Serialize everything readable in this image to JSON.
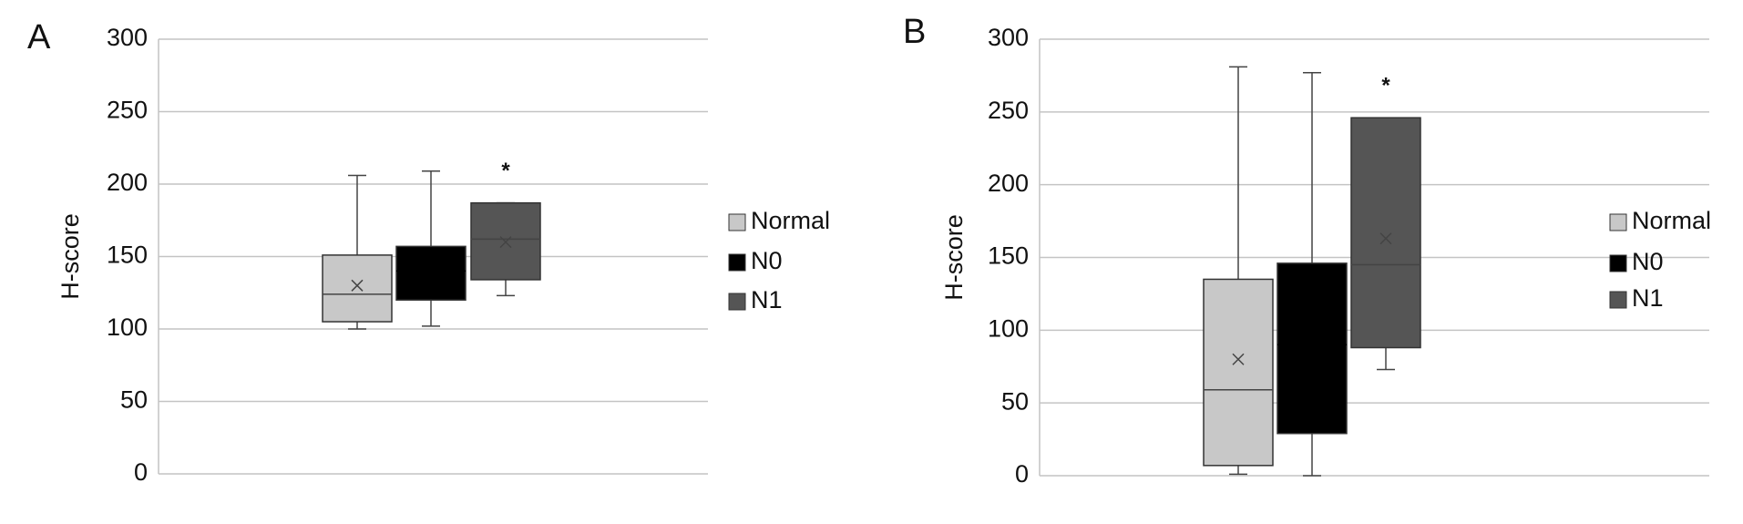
{
  "chart_data": [
    {
      "type": "box",
      "panel_label": "A",
      "ylabel": "H-score",
      "ylim": [
        0,
        300
      ],
      "yticks": [
        0,
        50,
        100,
        150,
        200,
        250,
        300
      ],
      "grid": true,
      "series": [
        {
          "name": "Normal",
          "color": "#c8c8c8",
          "min": 100,
          "q1": 105,
          "median": 124,
          "q3": 151,
          "max": 206,
          "mean": 130
        },
        {
          "name": "N0",
          "color": "#000000",
          "min": 102,
          "q1": 120,
          "median": 140,
          "q3": 157,
          "max": 209,
          "mean": 140
        },
        {
          "name": "N1",
          "color": "#555555",
          "min": 123,
          "q1": 134,
          "median": 162,
          "q3": 187,
          "max": 187,
          "mean": 160
        }
      ],
      "annotations": [
        {
          "text": "*",
          "category": "N1"
        }
      ]
    },
    {
      "type": "box",
      "panel_label": "B",
      "ylabel": "H-score",
      "ylim": [
        0,
        300
      ],
      "yticks": [
        0,
        50,
        100,
        150,
        200,
        250,
        300
      ],
      "grid": true,
      "series": [
        {
          "name": "Normal",
          "color": "#c8c8c8",
          "min": 1,
          "q1": 7,
          "median": 59,
          "q3": 135,
          "max": 281,
          "mean": 80
        },
        {
          "name": "N0",
          "color": "#000000",
          "min": 0,
          "q1": 29,
          "median": 90,
          "q3": 146,
          "max": 277,
          "mean": 90
        },
        {
          "name": "N1",
          "color": "#555555",
          "min": 73,
          "q1": 88,
          "median": 145,
          "q3": 246,
          "max": 246,
          "mean": 163
        }
      ],
      "annotations": [
        {
          "text": "*",
          "category": "N1"
        }
      ]
    }
  ]
}
